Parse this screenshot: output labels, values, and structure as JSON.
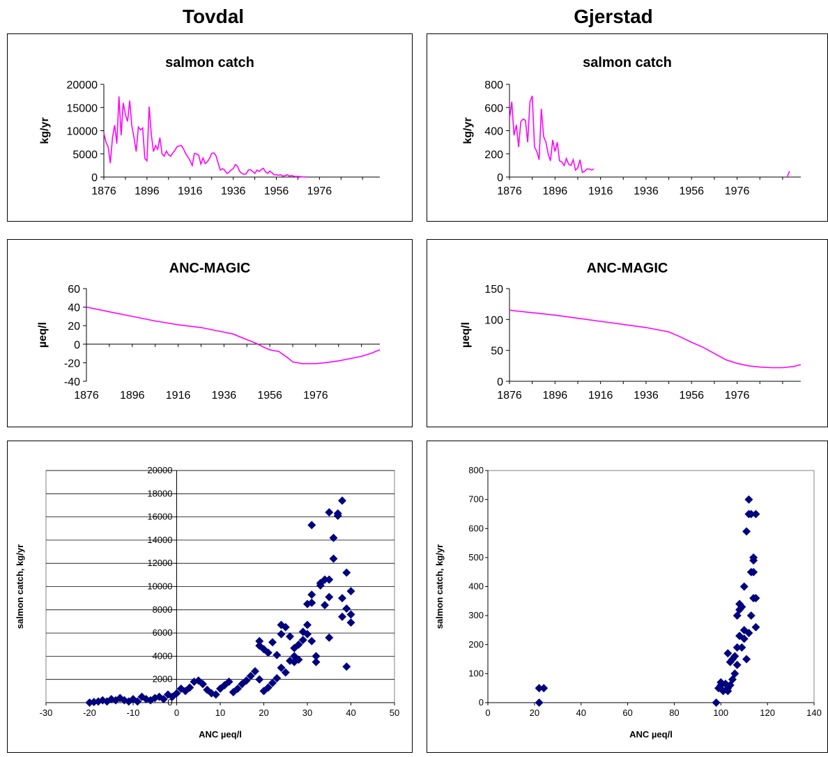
{
  "sites": {
    "left": "Tovdal",
    "right": "Gjerstad"
  },
  "colors": {
    "line": "#ff00ff",
    "marker": "#00007f",
    "plot_bg_scatter": "#ffffff"
  },
  "chart_data": [
    {
      "id": "tovdal-catch",
      "type": "line",
      "title": "salmon catch",
      "ylabel": "kg/yr",
      "xlabel": "",
      "xlim": [
        1876,
        2004
      ],
      "ylim": [
        0,
        20000
      ],
      "xticks": [
        1876,
        1896,
        1916,
        1936,
        1956,
        1976
      ],
      "yticks": [
        0,
        5000,
        10000,
        15000,
        20000
      ],
      "grid": false,
      "series": [
        {
          "x": [
            1876,
            1877,
            1878,
            1879,
            1880,
            1881,
            1882,
            1883,
            1884,
            1885,
            1886,
            1887,
            1888,
            1889,
            1890,
            1891,
            1892,
            1893,
            1894,
            1895,
            1896,
            1897,
            1898,
            1899,
            1900,
            1901,
            1902,
            1903,
            1904,
            1905,
            1906,
            1907,
            1908,
            1909,
            1910,
            1911,
            1912,
            1913,
            1914,
            1915,
            1916,
            1917,
            1918,
            1919,
            1920,
            1921,
            1922,
            1923,
            1924,
            1925,
            1926,
            1927,
            1928,
            1929,
            1930,
            1931,
            1932,
            1933,
            1934,
            1935,
            1936,
            1937,
            1938,
            1939,
            1940,
            1941,
            1942,
            1943,
            1944,
            1945,
            1946,
            1947,
            1948,
            1949,
            1950,
            1951,
            1952,
            1953,
            1954,
            1955,
            1956,
            1957,
            1958,
            1959,
            1960,
            1961,
            1962,
            1963,
            1964,
            1965,
            1966,
            1967,
            1968,
            1969,
            1970
          ],
          "y": [
            9500,
            7500,
            6500,
            3000,
            8500,
            11200,
            7200,
            17400,
            9000,
            16000,
            13500,
            12000,
            16500,
            11000,
            8500,
            5500,
            10800,
            10200,
            10600,
            4000,
            3500,
            15200,
            9200,
            5500,
            6800,
            6000,
            8500,
            5000,
            4500,
            5600,
            4800,
            4500,
            5200,
            5800,
            6600,
            6700,
            6800,
            6000,
            5000,
            4300,
            3500,
            2500,
            5100,
            5000,
            4700,
            2800,
            4100,
            2900,
            3300,
            4000,
            5100,
            5200,
            4600,
            3000,
            1500,
            1800,
            1500,
            800,
            1000,
            1500,
            1800,
            2700,
            2300,
            1200,
            800,
            600,
            700,
            1500,
            1600,
            1200,
            800,
            1500,
            1200,
            1600,
            1900,
            1100,
            800,
            1300,
            900,
            500,
            500,
            400,
            500,
            200,
            300,
            500,
            200,
            300,
            200,
            100,
            150,
            100,
            50,
            30,
            0
          ]
        }
      ]
    },
    {
      "id": "gjerstad-catch",
      "type": "line",
      "title": "salmon catch",
      "ylabel": "kg/yr",
      "xlabel": "",
      "xlim": [
        1876,
        2004
      ],
      "ylim": [
        0,
        800
      ],
      "xticks": [
        1876,
        1896,
        1916,
        1936,
        1956,
        1976
      ],
      "yticks": [
        0,
        200,
        400,
        600,
        800
      ],
      "grid": false,
      "series": [
        {
          "x": [
            1876,
            1877,
            1878,
            1879,
            1880,
            1881,
            1882,
            1883,
            1884,
            1885,
            1886,
            1887,
            1888,
            1889,
            1890,
            1891,
            1892,
            1893,
            1894,
            1895,
            1896,
            1897,
            1898,
            1899,
            1900,
            1901,
            1902,
            1903,
            1904,
            1905,
            1906,
            1907,
            1908,
            1909,
            1910,
            1911,
            1912,
            1913
          ],
          "y": [
            500,
            650,
            360,
            450,
            260,
            480,
            500,
            490,
            300,
            650,
            700,
            260,
            220,
            150,
            590,
            350,
            300,
            200,
            140,
            320,
            220,
            300,
            140,
            130,
            100,
            160,
            110,
            100,
            150,
            60,
            80,
            150,
            40,
            50,
            70,
            70,
            60,
            70
          ]
        },
        {
          "x": [
            1998,
            1999
          ],
          "y": [
            0,
            50
          ]
        }
      ]
    },
    {
      "id": "tovdal-anc",
      "type": "line",
      "title": "ANC-MAGIC",
      "ylabel": "µeq/l",
      "xlabel": "",
      "xlim": [
        1876,
        2004
      ],
      "ylim": [
        -40,
        60
      ],
      "xticks": [
        1876,
        1896,
        1916,
        1936,
        1956,
        1976
      ],
      "yticks": [
        -40,
        -20,
        0,
        20,
        40,
        60
      ],
      "grid": false,
      "series": [
        {
          "x": [
            1876,
            1886,
            1896,
            1906,
            1916,
            1926,
            1936,
            1940,
            1946,
            1950,
            1954,
            1956,
            1960,
            1964,
            1966,
            1970,
            1976,
            1980,
            1986,
            1990,
            1996,
            2000,
            2004
          ],
          "y": [
            40,
            35,
            30,
            25,
            21,
            18,
            13,
            11,
            5,
            1,
            -4,
            -6,
            -8,
            -15,
            -19,
            -21,
            -21,
            -20,
            -18,
            -16,
            -13,
            -10,
            -6
          ]
        }
      ]
    },
    {
      "id": "gjerstad-anc",
      "type": "line",
      "title": "ANC-MAGIC",
      "ylabel": "µeq/l",
      "xlabel": "",
      "xlim": [
        1876,
        2004
      ],
      "ylim": [
        0,
        150
      ],
      "xticks": [
        1876,
        1896,
        1916,
        1936,
        1956,
        1976
      ],
      "yticks": [
        0,
        50,
        100,
        150
      ],
      "grid": false,
      "series": [
        {
          "x": [
            1876,
            1886,
            1896,
            1906,
            1916,
            1926,
            1936,
            1946,
            1951,
            1956,
            1961,
            1966,
            1971,
            1976,
            1981,
            1986,
            1991,
            1996,
            2001,
            2004
          ],
          "y": [
            115,
            111,
            107,
            102,
            97,
            92,
            87,
            80,
            72,
            63,
            55,
            45,
            35,
            29,
            25,
            23,
            22,
            22,
            24,
            27
          ]
        }
      ]
    },
    {
      "id": "tovdal-scatter",
      "type": "scatter",
      "title": "",
      "xlabel": "ANC µeq/l",
      "ylabel": "salmon catch, kg/yr",
      "xlim": [
        -30,
        50
      ],
      "ylim": [
        0,
        20000
      ],
      "xticks": [
        -30,
        -20,
        -10,
        0,
        10,
        20,
        30,
        40,
        50
      ],
      "yticks": [
        0,
        2000,
        4000,
        6000,
        8000,
        10000,
        12000,
        14000,
        16000,
        18000,
        20000
      ],
      "grid": true,
      "points": [
        [
          -20,
          0
        ],
        [
          -19,
          50
        ],
        [
          -18,
          100
        ],
        [
          -17,
          200
        ],
        [
          -16,
          100
        ],
        [
          -15,
          300
        ],
        [
          -14,
          200
        ],
        [
          -13,
          400
        ],
        [
          -12,
          200
        ],
        [
          -11,
          100
        ],
        [
          -10,
          300
        ],
        [
          -9,
          100
        ],
        [
          -8,
          500
        ],
        [
          -7,
          300
        ],
        [
          -6,
          200
        ],
        [
          -5,
          400
        ],
        [
          -4,
          500
        ],
        [
          -3,
          300
        ],
        [
          -2,
          700
        ],
        [
          -1,
          500
        ],
        [
          0,
          800
        ],
        [
          1,
          1200
        ],
        [
          2,
          1000
        ],
        [
          3,
          1300
        ],
        [
          4,
          1800
        ],
        [
          5,
          1900
        ],
        [
          6,
          1600
        ],
        [
          7,
          1100
        ],
        [
          8,
          800
        ],
        [
          9,
          700
        ],
        [
          10,
          1200
        ],
        [
          11,
          1500
        ],
        [
          12,
          1800
        ],
        [
          13,
          900
        ],
        [
          14,
          1200
        ],
        [
          15,
          1600
        ],
        [
          16,
          1900
        ],
        [
          17,
          2300
        ],
        [
          18,
          2700
        ],
        [
          19,
          2000
        ],
        [
          20,
          1000
        ],
        [
          21,
          1300
        ],
        [
          22,
          1700
        ],
        [
          23,
          2100
        ],
        [
          24,
          3000
        ],
        [
          25,
          2600
        ],
        [
          26,
          3600
        ],
        [
          27,
          4000
        ],
        [
          27,
          3500
        ],
        [
          28,
          3700
        ],
        [
          19,
          5300
        ],
        [
          19,
          4900
        ],
        [
          20,
          4600
        ],
        [
          21,
          4300
        ],
        [
          22,
          5200
        ],
        [
          23,
          4100
        ],
        [
          24,
          5900
        ],
        [
          24,
          6700
        ],
        [
          25,
          6500
        ],
        [
          26,
          5700
        ],
        [
          27,
          4700
        ],
        [
          28,
          5000
        ],
        [
          29,
          5400
        ],
        [
          30,
          5900
        ],
        [
          31,
          8600
        ],
        [
          29,
          6100
        ],
        [
          30,
          6700
        ],
        [
          31,
          5300
        ],
        [
          30,
          8500
        ],
        [
          31,
          9300
        ],
        [
          32,
          4000
        ],
        [
          32,
          3500
        ],
        [
          33,
          10300
        ],
        [
          33,
          10100
        ],
        [
          34,
          10600
        ],
        [
          35,
          5600
        ],
        [
          34,
          8400
        ],
        [
          35,
          9100
        ],
        [
          36,
          12400
        ],
        [
          36,
          14200
        ],
        [
          37,
          16300
        ],
        [
          37,
          16100
        ],
        [
          38,
          17400
        ],
        [
          38,
          9000
        ],
        [
          38,
          7400
        ],
        [
          39,
          8100
        ],
        [
          39,
          11200
        ],
        [
          40,
          7600
        ],
        [
          40,
          6900
        ],
        [
          39,
          3100
        ],
        [
          31,
          15300
        ],
        [
          35,
          16400
        ],
        [
          40,
          9600
        ],
        [
          35,
          10600
        ]
      ]
    },
    {
      "id": "gjerstad-scatter",
      "type": "scatter",
      "title": "",
      "xlabel": "ANC µeq/l",
      "ylabel": "salmon catch, kg/yr",
      "xlim": [
        0,
        140
      ],
      "ylim": [
        0,
        800
      ],
      "xticks": [
        0,
        20,
        40,
        60,
        80,
        100,
        120,
        140
      ],
      "yticks": [
        0,
        100,
        200,
        300,
        400,
        500,
        600,
        700,
        800
      ],
      "grid": false,
      "points": [
        [
          22,
          0
        ],
        [
          22,
          50
        ],
        [
          24,
          50
        ],
        [
          98,
          0
        ],
        [
          99,
          50
        ],
        [
          100,
          60
        ],
        [
          101,
          40
        ],
        [
          100,
          70
        ],
        [
          102,
          65
        ],
        [
          103,
          40
        ],
        [
          103,
          50
        ],
        [
          104,
          60
        ],
        [
          105,
          80
        ],
        [
          105,
          150
        ],
        [
          104,
          140
        ],
        [
          106,
          160
        ],
        [
          106,
          100
        ],
        [
          107,
          130
        ],
        [
          107,
          190
        ],
        [
          107,
          300
        ],
        [
          108,
          230
        ],
        [
          108,
          320
        ],
        [
          109,
          190
        ],
        [
          109,
          330
        ],
        [
          110,
          250
        ],
        [
          110,
          220
        ],
        [
          110,
          400
        ],
        [
          111,
          150
        ],
        [
          111,
          590
        ],
        [
          112,
          650
        ],
        [
          112,
          700
        ],
        [
          113,
          650
        ],
        [
          113,
          450
        ],
        [
          113,
          300
        ],
        [
          114,
          490
        ],
        [
          114,
          500
        ],
        [
          114,
          450
        ],
        [
          115,
          260
        ],
        [
          114,
          360
        ],
        [
          115,
          650
        ],
        [
          115,
          360
        ],
        [
          108,
          340
        ],
        [
          112,
          240
        ],
        [
          103,
          170
        ]
      ]
    }
  ]
}
